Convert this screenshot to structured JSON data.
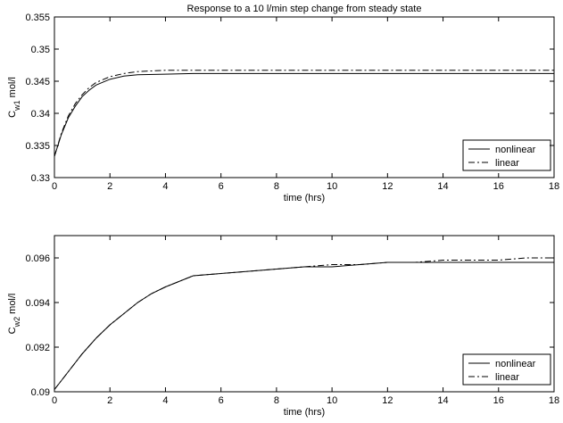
{
  "chart_data": [
    {
      "type": "line",
      "title": "Response to a 10 l/min step change from steady state",
      "xlabel": "time (hrs)",
      "ylabel": {
        "main": "C",
        "sub": "w1",
        "unit": " mol/l"
      },
      "xlim": [
        0,
        18
      ],
      "ylim": [
        0.33,
        0.355
      ],
      "xticks": [
        0,
        2,
        4,
        6,
        8,
        10,
        12,
        14,
        16,
        18
      ],
      "yticks": [
        0.33,
        0.335,
        0.34,
        0.345,
        0.35,
        0.355
      ],
      "ytick_labels": [
        "0.33",
        "0.335",
        "0.34",
        "0.345",
        "0.35",
        "0.355"
      ],
      "grid": false,
      "legend_position": "bottom-right",
      "series": [
        {
          "name": "nonlinear",
          "style": "solid",
          "color": "#000000",
          "x": [
            0,
            0.25,
            0.5,
            0.75,
            1.0,
            1.25,
            1.5,
            2.0,
            2.5,
            3.0,
            4.0,
            5.0,
            6.0,
            8.0,
            10.0,
            12.0,
            14.0,
            16.0,
            18.0
          ],
          "y": [
            0.3333,
            0.3367,
            0.3393,
            0.3411,
            0.3426,
            0.3436,
            0.3444,
            0.3453,
            0.3458,
            0.346,
            0.3461,
            0.3462,
            0.3462,
            0.3462,
            0.3462,
            0.3462,
            0.3462,
            0.3462,
            0.3462
          ]
        },
        {
          "name": "linear",
          "style": "dashdot",
          "color": "#000000",
          "x": [
            0,
            0.25,
            0.5,
            0.75,
            1.0,
            1.25,
            1.5,
            2.0,
            2.5,
            3.0,
            4.0,
            5.0,
            6.0,
            8.0,
            10.0,
            12.0,
            14.0,
            16.0,
            18.0
          ],
          "y": [
            0.3333,
            0.3369,
            0.3396,
            0.3415,
            0.3429,
            0.344,
            0.3448,
            0.3457,
            0.3462,
            0.3465,
            0.3467,
            0.3467,
            0.3467,
            0.3467,
            0.3467,
            0.3467,
            0.3467,
            0.3467,
            0.3467
          ]
        }
      ]
    },
    {
      "type": "line",
      "title": "",
      "xlabel": "time (hrs)",
      "ylabel": {
        "main": "C",
        "sub": "w2",
        "unit": " mol/l"
      },
      "xlim": [
        0,
        18
      ],
      "ylim": [
        0.09,
        0.097
      ],
      "xticks": [
        0,
        2,
        4,
        6,
        8,
        10,
        12,
        14,
        16,
        18
      ],
      "yticks": [
        0.09,
        0.092,
        0.094,
        0.096
      ],
      "ytick_labels": [
        "0.09",
        "0.092",
        "0.094",
        "0.096"
      ],
      "grid": false,
      "legend_position": "bottom-right",
      "series": [
        {
          "name": "nonlinear",
          "style": "solid",
          "color": "#000000",
          "x": [
            0,
            0.5,
            1,
            1.5,
            2,
            2.5,
            3,
            3.5,
            4,
            5,
            6,
            7,
            8,
            9,
            10,
            11,
            12,
            13,
            14,
            15,
            16,
            17,
            18
          ],
          "y": [
            0.0901,
            0.0909,
            0.0917,
            0.0924,
            0.093,
            0.0935,
            0.094,
            0.0944,
            0.0947,
            0.0952,
            0.0953,
            0.0954,
            0.0955,
            0.0956,
            0.0956,
            0.0957,
            0.0958,
            0.0958,
            0.0958,
            0.0958,
            0.0958,
            0.0958,
            0.0958
          ]
        },
        {
          "name": "linear",
          "style": "dashdot",
          "color": "#000000",
          "x": [
            0,
            0.5,
            1,
            1.5,
            2,
            2.5,
            3,
            3.5,
            4,
            5,
            6,
            7,
            8,
            9,
            10,
            11,
            12,
            13,
            14,
            15,
            16,
            17,
            18
          ],
          "y": [
            0.0901,
            0.0909,
            0.0917,
            0.0924,
            0.093,
            0.0935,
            0.094,
            0.0944,
            0.0947,
            0.0952,
            0.0953,
            0.0954,
            0.0955,
            0.0956,
            0.0957,
            0.0957,
            0.0958,
            0.0958,
            0.0959,
            0.0959,
            0.0959,
            0.096,
            0.096
          ]
        }
      ]
    }
  ]
}
